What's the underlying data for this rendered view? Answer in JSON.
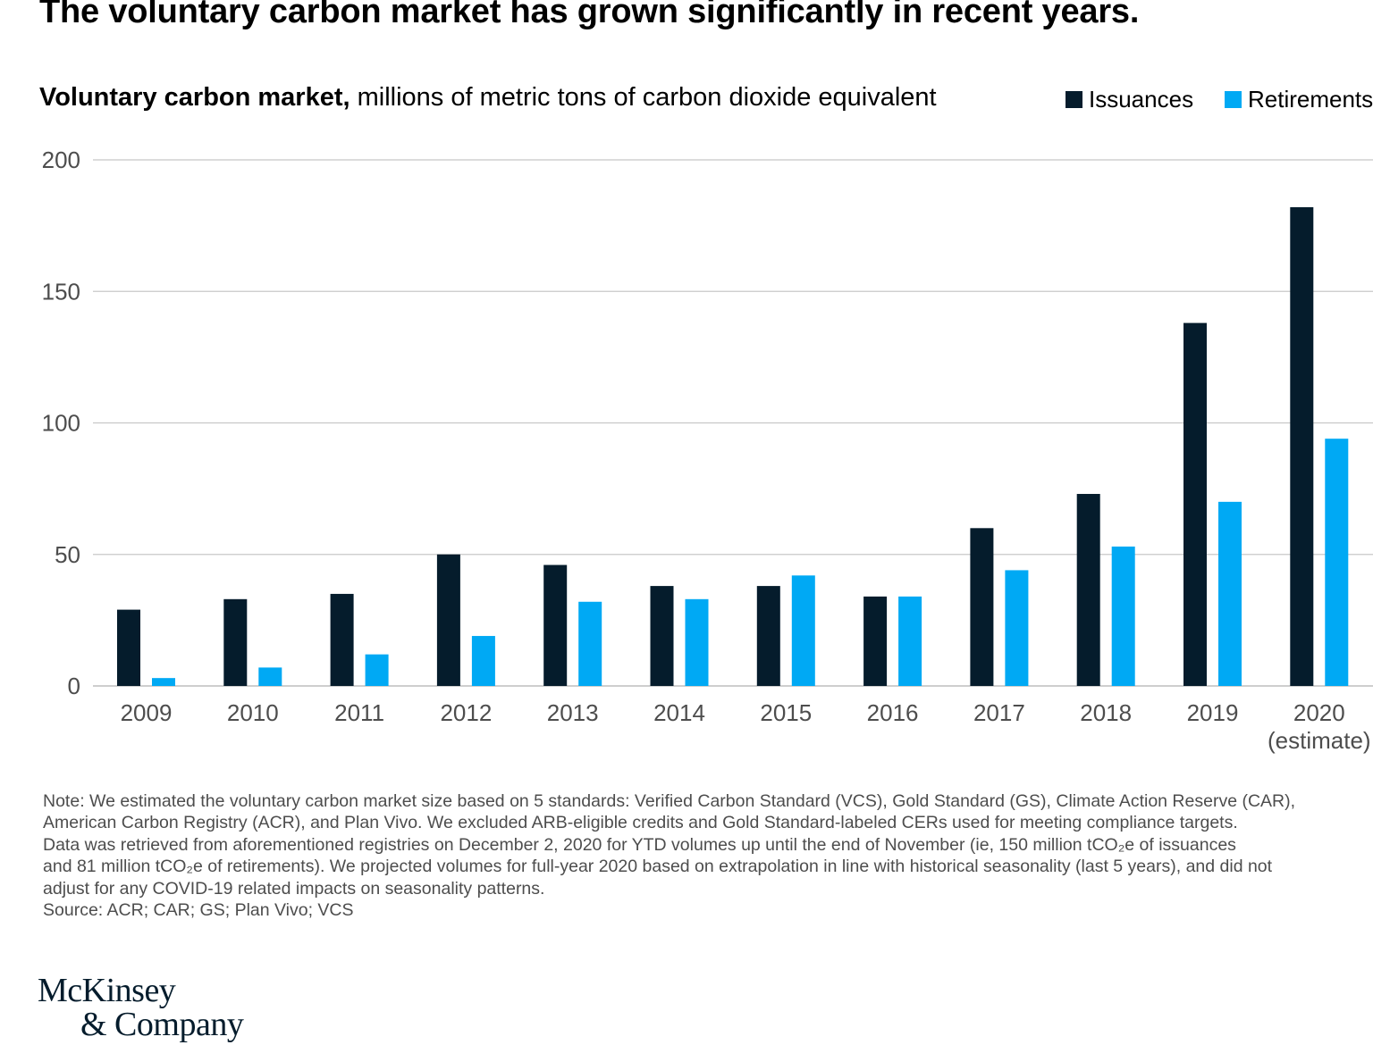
{
  "headline": "The voluntary carbon market has grown significantly in recent years.",
  "subtitle_bold": "Voluntary carbon market,",
  "subtitle_rest": " millions of metric tons of carbon dioxide equivalent",
  "colors": {
    "issuances": "#051c2c",
    "retirements": "#00a9f4",
    "grid": "#c8c8c8",
    "axis": "#b0b0b0"
  },
  "chart_data": {
    "type": "bar",
    "categories": [
      "2009",
      "2010",
      "2011",
      "2012",
      "2013",
      "2014",
      "2015",
      "2016",
      "2017",
      "2018",
      "2019",
      "2020"
    ],
    "category_sublabels": [
      "",
      "",
      "",
      "",
      "",
      "",
      "",
      "",
      "",
      "",
      "",
      "(estimate)"
    ],
    "series": [
      {
        "name": "Issuances",
        "values": [
          29,
          33,
          35,
          50,
          46,
          38,
          38,
          34,
          60,
          73,
          138,
          182
        ]
      },
      {
        "name": "Retirements",
        "values": [
          3,
          7,
          12,
          19,
          32,
          33,
          42,
          34,
          44,
          53,
          70,
          94
        ]
      }
    ],
    "title": "Voluntary carbon market, millions of metric tons of carbon dioxide equivalent",
    "xlabel": "",
    "ylabel": "",
    "ylim": [
      0,
      200
    ],
    "yticks": [
      0,
      50,
      100,
      150,
      200
    ],
    "grid": true,
    "legend": "top-right"
  },
  "note_lines": [
    "Note: We estimated the voluntary carbon market size based on 5 standards: Verified Carbon Standard (VCS), Gold Standard (GS), Climate Action Reserve (CAR),",
    "American Carbon Registry (ACR), and Plan Vivo. We excluded ARB-eligible credits and Gold Standard-labeled CERs used for meeting compliance targets.",
    "Data was retrieved from aforementioned registries on December 2, 2020 for YTD volumes up until the end of November (ie, 150 million tCO₂e of issuances",
    "and 81 million tCO₂e of retirements). We projected volumes for full-year 2020 based on extrapolation in line with historical seasonality (last 5 years), and did not",
    "adjust for any COVID-19 related impacts on seasonality patterns."
  ],
  "source": "Source: ACR; CAR; GS; Plan Vivo; VCS",
  "logo": {
    "line1": "McKinsey",
    "line2": "& Company"
  }
}
